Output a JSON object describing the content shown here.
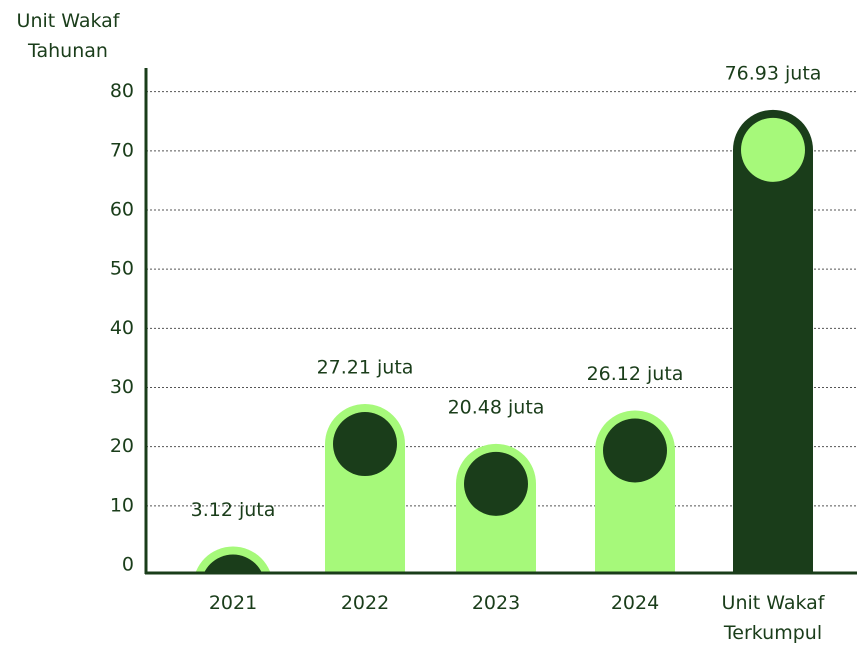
{
  "chart_data": {
    "type": "bar",
    "y_axis_label": "Unit Wakaf Tahunan",
    "categories": [
      "2021",
      "2022",
      "2023",
      "2024",
      "Unit Wakaf Terkumpul"
    ],
    "values": [
      3.12,
      27.21,
      20.48,
      26.12,
      76.93
    ],
    "value_labels": [
      "3.12 juta",
      "27.21 juta",
      "20.48 juta",
      "26.12 juta",
      "76.93 juta"
    ],
    "bar_colors": [
      "#a6f97a",
      "#a6f97a",
      "#a6f97a",
      "#a6f97a",
      "#1a3d1a"
    ],
    "dot_colors": [
      "#1a3d1a",
      "#1a3d1a",
      "#1a3d1a",
      "#1a3d1a",
      "#a6f97a"
    ],
    "ylim": [
      0,
      84
    ],
    "yticks": [
      0,
      10,
      20,
      30,
      40,
      50,
      60,
      70,
      80
    ],
    "grid": true
  }
}
